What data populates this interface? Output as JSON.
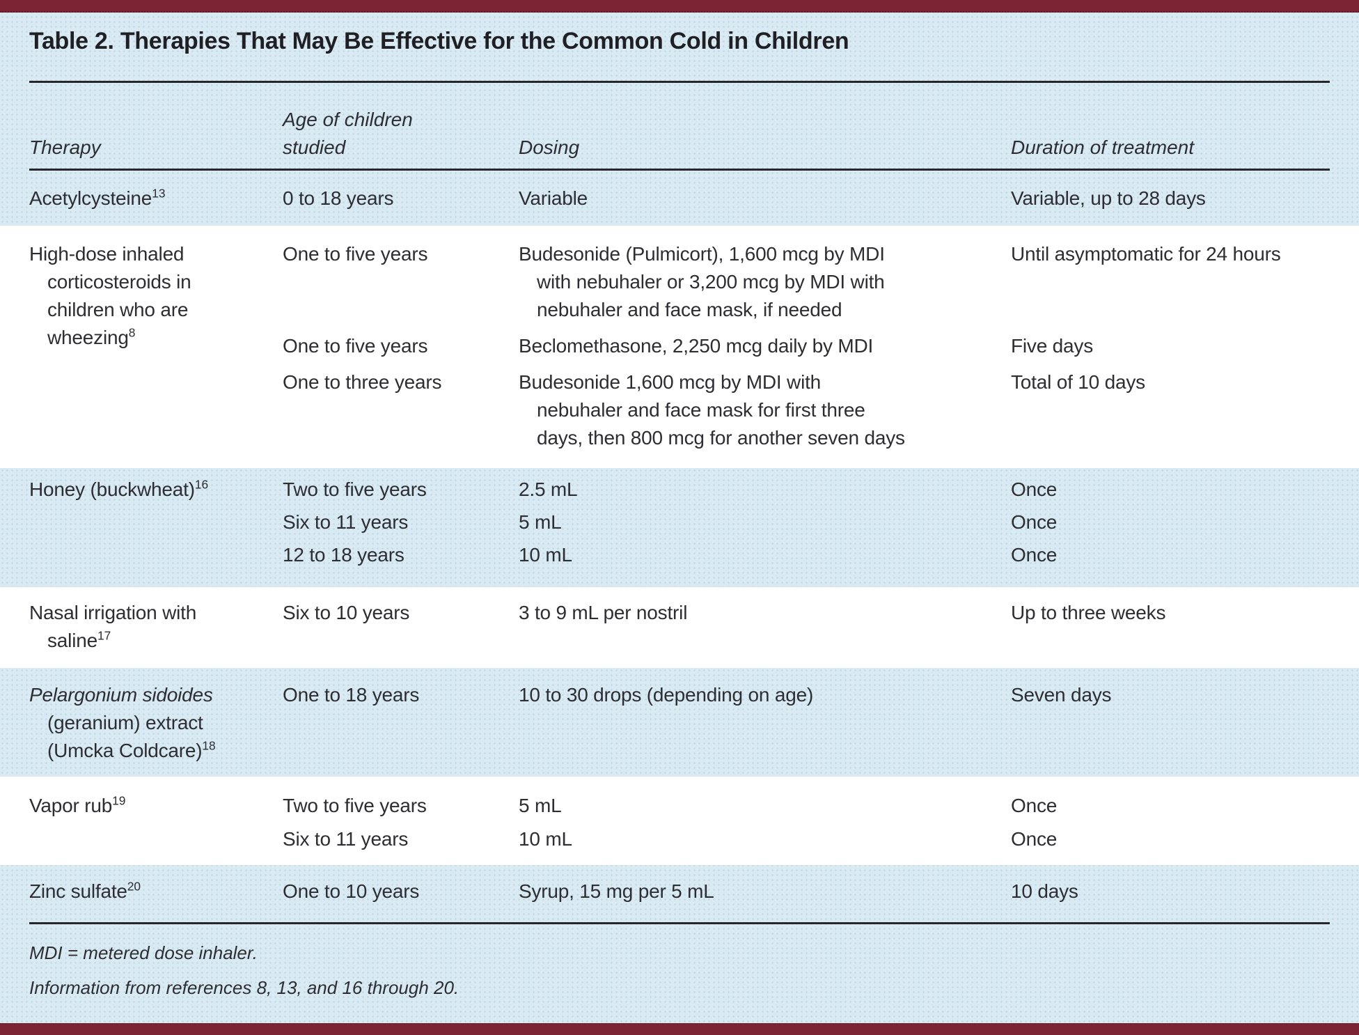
{
  "page_title": "Table 2. Therapies That May Be Effective for the Common Cold in Children",
  "colors": {
    "band_maroon": "#7d2434",
    "background_blue": "#d9eaf3",
    "stripe_white": "#ffffff",
    "text": "#2d2d32",
    "rule": "#26262b"
  },
  "header": {
    "columns": [
      {
        "label": "Therapy"
      },
      {
        "label": "Age of children\nstudied"
      },
      {
        "label": "Dosing"
      },
      {
        "label": "Duration of treatment"
      }
    ]
  },
  "table": {
    "rows": [
      {
        "therapy": {
          "text": "Acetylcysteine",
          "sup": "13"
        },
        "entries": [
          {
            "age": "0 to 18 years",
            "dosing": "Variable",
            "duration": "Variable, up to 28 days"
          }
        ]
      },
      {
        "therapy": {
          "text": "High-dose inhaled\ncorticosteroids in\nchildren who are\nwheezing",
          "sup": "8"
        },
        "entries": [
          {
            "age": "One to five years",
            "dosing": "Budesonide (Pulmicort), 1,600 mcg by MDI\nwith nebuhaler or 3,200 mcg by MDI with\nnebuhaler and face mask, if needed",
            "duration": "Until asymptomatic for 24 hours"
          },
          {
            "age": "One to five years",
            "dosing": "Beclomethasone, 2,250 mcg daily by MDI",
            "duration": "Five days"
          },
          {
            "age": "One to three years",
            "dosing": "Budesonide 1,600 mcg by MDI with\nnebuhaler and face mask for first three\ndays, then 800 mcg for another seven days",
            "duration": "Total of 10 days"
          }
        ]
      },
      {
        "therapy": {
          "text": "Honey (buckwheat)",
          "sup": "16"
        },
        "entries": [
          {
            "age": "Two to five years",
            "dosing": "2.5 mL",
            "duration": "Once"
          },
          {
            "age": "Six to 11 years",
            "dosing": "5 mL",
            "duration": "Once"
          },
          {
            "age": "12 to 18 years",
            "dosing": "10 mL",
            "duration": "Once"
          }
        ]
      },
      {
        "therapy": {
          "text": "Nasal irrigation with\nsaline",
          "sup": "17"
        },
        "entries": [
          {
            "age": "Six to 10 years",
            "dosing": "3 to 9 mL per nostril",
            "duration": "Up to three weeks"
          }
        ]
      },
      {
        "therapy": {
          "italic": "Pelargonium sidoides",
          "text": "\n(geranium) extract\n(Umcka Coldcare)",
          "sup": "18"
        },
        "entries": [
          {
            "age": "One to 18 years",
            "dosing": "10 to 30 drops (depending on age)",
            "duration": "Seven days"
          }
        ]
      },
      {
        "therapy": {
          "text": "Vapor rub",
          "sup": "19"
        },
        "entries": [
          {
            "age": "Two to five years",
            "dosing": "5 mL",
            "duration": "Once"
          },
          {
            "age": "Six to 11 years",
            "dosing": "10 mL",
            "duration": "Once"
          }
        ]
      },
      {
        "therapy": {
          "text": "Zinc sulfate",
          "sup": "20"
        },
        "entries": [
          {
            "age": "One to 10 years",
            "dosing": "Syrup, 15 mg per 5 mL",
            "duration": "10 days"
          }
        ]
      }
    ]
  },
  "footnotes": [
    "MDI = metered dose inhaler.",
    "Information from references 8, 13, and 16 through 20."
  ]
}
